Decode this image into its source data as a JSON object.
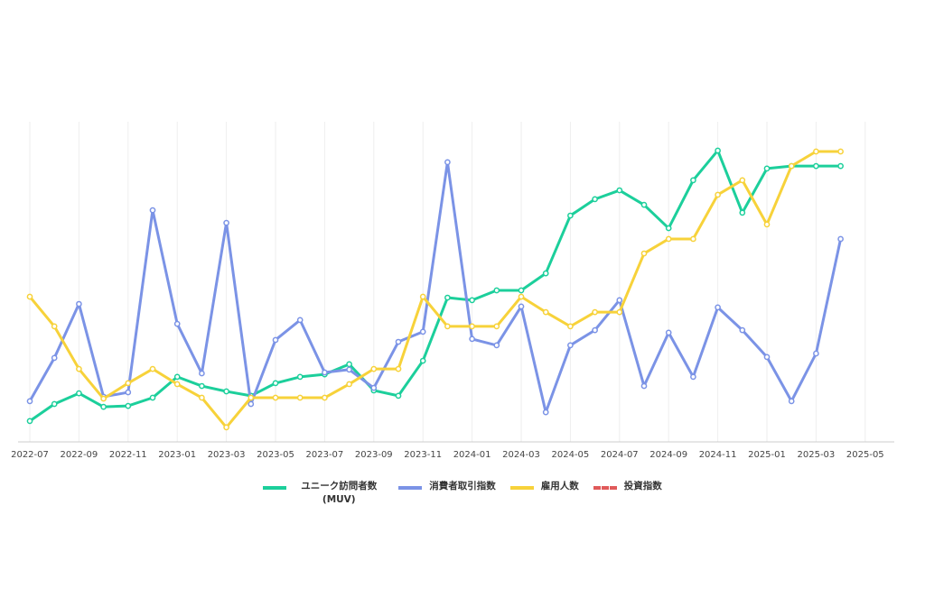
{
  "chart_data": {
    "type": "line",
    "x": [
      "2022-07",
      "2022-08",
      "2022-09",
      "2022-10",
      "2022-11",
      "2022-12",
      "2023-01",
      "2023-02",
      "2023-03",
      "2023-04",
      "2023-05",
      "2023-06",
      "2023-07",
      "2023-08",
      "2023-09",
      "2023-10",
      "2023-11",
      "2023-12",
      "2024-01",
      "2024-02",
      "2024-03",
      "2024-04",
      "2024-05",
      "2024-06",
      "2024-07",
      "2024-08",
      "2024-09",
      "2024-10",
      "2024-11",
      "2024-12",
      "2025-01",
      "2025-02",
      "2025-03",
      "2025-04"
    ],
    "xticks": [
      "2022-07",
      "2022-09",
      "2022-11",
      "2023-01",
      "2023-03",
      "2023-05",
      "2023-07",
      "2023-09",
      "2023-11",
      "2024-01",
      "2024-03",
      "2024-05",
      "2024-07",
      "2024-09",
      "2024-11",
      "2025-01",
      "2025-03",
      "2025-05"
    ],
    "ylim": [
      0,
      100
    ],
    "grid": true,
    "series": [
      {
        "name": "ユニーク訪問者数 (MUV)",
        "color": "#1ccf9b",
        "values": [
          6.6,
          12,
          15.4,
          11.1,
          11.4,
          14,
          20.6,
          17.7,
          16,
          14.6,
          18.6,
          20.6,
          21.4,
          24.6,
          16.3,
          14.6,
          25.7,
          45.7,
          44.9,
          48,
          48,
          53.4,
          71.7,
          76.9,
          79.7,
          75.1,
          67.7,
          82.9,
          92.3,
          72.6,
          86.6,
          87.4,
          87.4,
          87.4
        ]
      },
      {
        "name": "消費者取引指数",
        "color": "#7b93e6",
        "values": [
          12.9,
          26.6,
          43.7,
          14.3,
          15.7,
          73.4,
          37.4,
          21.7,
          69.4,
          12,
          32.3,
          38.6,
          22,
          22.9,
          17.1,
          31.7,
          34.9,
          88.6,
          32.6,
          30.6,
          42.9,
          9.4,
          30.6,
          35.4,
          44.9,
          17.7,
          34.6,
          20.6,
          42.6,
          35.4,
          26.9,
          12.9,
          28,
          64.3
        ]
      },
      {
        "name": "雇用人数",
        "color": "#f7d23a",
        "values": [
          46,
          36.6,
          23.1,
          13.7,
          18.6,
          23.1,
          18.3,
          14,
          4.6,
          14,
          14,
          14,
          14,
          18.3,
          23.1,
          23.1,
          46,
          36.6,
          36.6,
          36.6,
          46,
          41.1,
          36.6,
          41.1,
          41.1,
          59.7,
          64.3,
          64.3,
          78.3,
          82.9,
          68.9,
          87.4,
          92,
          92
        ]
      },
      {
        "name": "投資指数",
        "color": "#e05a5a",
        "dashed": true,
        "values": [
          null,
          null,
          null,
          null,
          null,
          null,
          null,
          null,
          null,
          null,
          null,
          null,
          null,
          null,
          null,
          null,
          null,
          null,
          null,
          null,
          null,
          null,
          null,
          null,
          null,
          null,
          null,
          null,
          null,
          null,
          null,
          null,
          null,
          null
        ]
      }
    ]
  }
}
